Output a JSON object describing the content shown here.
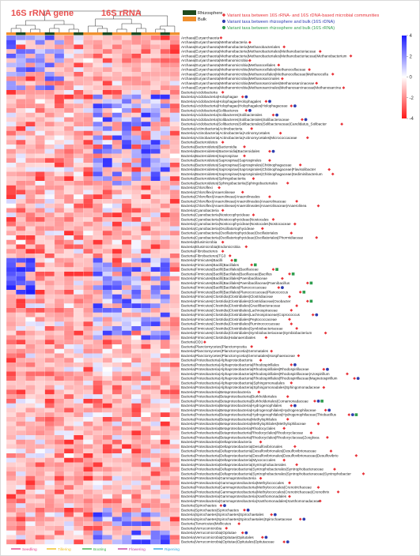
{
  "header": {
    "gene_title": "16S rRNA gene",
    "rrna_title": "16S rRNA"
  },
  "legend": {
    "groups": [
      {
        "name": "Rhizosphere",
        "color": "#1f4a1f"
      },
      {
        "name": "Bulk",
        "color": "#f0902f"
      }
    ],
    "markers": [
      {
        "symbol": "diamond",
        "color": "#e8343a",
        "text": "Variant taxa between 16S rRNA- and 16S rDNA-based microbial communities"
      },
      {
        "symbol": "circle",
        "color": "#2f3fb0",
        "text": "Variant taxa between rhizosphere and bulk (16S rDNA)"
      },
      {
        "symbol": "circle",
        "color": "#2e9d4e",
        "text": "Variant taxa between rhizosphere and bulk (16S rRNA)"
      }
    ]
  },
  "colorbar": {
    "ticks": [
      "4",
      "2",
      "0",
      "-2",
      "-4"
    ],
    "max": 4,
    "min": -4,
    "high_color": "#1a1aff",
    "mid_color": "#ffffff",
    "low_color": "#ff1a1a"
  },
  "stages": [
    {
      "name": "Seedling",
      "color": "#e83e8c"
    },
    {
      "name": "Tillering",
      "color": "#f0c020"
    },
    {
      "name": "Booting",
      "color": "#3db54a"
    },
    {
      "name": "Flowering",
      "color": "#c83fa0"
    },
    {
      "name": "Ripening",
      "color": "#29a8e0"
    }
  ],
  "rows": [
    {
      "label": "Archaea|Euryarchaeota",
      "marks": "d"
    },
    {
      "label": "Archaea|Euryarchaeota|Methanobacteria",
      "marks": "d"
    },
    {
      "label": "Archaea|Euryarchaeota|Methanobacteria|Methanobacteriales",
      "marks": "d"
    },
    {
      "label": "Archaea|Euryarchaeota|Methanobacteria|Methanobacteriales|Methanobacteriaceae",
      "marks": "d"
    },
    {
      "label": "Archaea|Euryarchaeota|Methanobacteria|Methanobacteriales|Methanobacteriaceae|Methanobacterium",
      "marks": "d"
    },
    {
      "label": "Archaea|Euryarchaeota|Methanomicrobia",
      "marks": "d"
    },
    {
      "label": "Archaea|Euryarchaeota|Methanomicrobia|Methanocellales",
      "marks": "d"
    },
    {
      "label": "Archaea|Euryarchaeota|Methanomicrobia|Methanocellales|Methanocellaceae",
      "marks": "d"
    },
    {
      "label": "Archaea|Euryarchaeota|Methanomicrobia|Methanocellales|Methanocellaceae|Methanocella",
      "marks": "d"
    },
    {
      "label": "Archaea|Euryarchaeota|Methanomicrobia|Methanosarcinales",
      "marks": "d"
    },
    {
      "label": "Archaea|Euryarchaeota|Methanomicrobia|Methanosarcinales|Methanosarcinaceae",
      "marks": "d"
    },
    {
      "label": "Archaea|Euryarchaeota|Methanomicrobia|Methanosarcinales|Methanosarcinaceae|Methanosarcina",
      "marks": "d"
    },
    {
      "label": "Bacteria|Acidobacteria",
      "marks": "d"
    },
    {
      "label": "Bacteria|Acidobacteria|Holophagae",
      "marks": "db"
    },
    {
      "label": "Bacteria|Acidobacteria|Holophagae|Holophagales",
      "marks": "db"
    },
    {
      "label": "Bacteria|Acidobacteria|Holophagae|Holophagales|Holophagaceae",
      "marks": "db"
    },
    {
      "label": "Bacteria|Acidobacteria|Solibacteres",
      "marks": "db"
    },
    {
      "label": "Bacteria|Acidobacteria|Solibacteres|Solibacterales",
      "marks": "db"
    },
    {
      "label": "Bacteria|Acidobacteria|Solibacteres|Solibacterales|Solibacteraceae",
      "marks": "db"
    },
    {
      "label": "Bacteria|Acidobacteria|Solibacteres|Solibacterales|Solibacteraceae|Candidatus_Solibacter",
      "marks": "d"
    },
    {
      "label": "Bacteria|Actinobacteria|Actinobacteria",
      "marks": "d"
    },
    {
      "label": "Bacteria|Actinobacteria|Actinobacteria|Actinomycetales",
      "marks": "d"
    },
    {
      "label": "Bacteria|Actinobacteria|Actinobacteria|Actinomycetales|Micrococcaceae",
      "marks": "d"
    },
    {
      "label": "Bacteria|Bacteroidetes",
      "marks": "d"
    },
    {
      "label": "Bacteria|Bacteroidetes|Bacteroidia",
      "marks": "d"
    },
    {
      "label": "Bacteria|Bacteroidetes|Bacteroidia|Bacteroidales",
      "marks": "db"
    },
    {
      "label": "Bacteria|Bacteroidetes|Saprospirae",
      "marks": "d"
    },
    {
      "label": "Bacteria|Bacteroidetes|Saprospirae|Saprospirales",
      "marks": "d"
    },
    {
      "label": "Bacteria|Bacteroidetes|Saprospirae|Saprospirales|Chitinophagaceae",
      "marks": "d"
    },
    {
      "label": "Bacteria|Bacteroidetes|Saprospirae|Saprospirales|Chitinophagaceae|Flavisolibacter",
      "marks": "d"
    },
    {
      "label": "Bacteria|Bacteroidetes|Saprospirae|Saprospirales|Chitinophagaceae|Sediminibacterium",
      "marks": "d"
    },
    {
      "label": "Bacteria|Bacteroidetes|Sphingobacteriia",
      "marks": "d"
    },
    {
      "label": "Bacteria|Bacteroidetes|Sphingobacteriia|Sphingobacteriales",
      "marks": "d"
    },
    {
      "label": "Bacteria|Chloroflexi",
      "marks": "d"
    },
    {
      "label": "Bacteria|Chloroflexi|Anaerolineae",
      "marks": "d"
    },
    {
      "label": "Bacteria|Chloroflexi|Anaerolineae|Anaerolineales",
      "marks": "d"
    },
    {
      "label": "Bacteria|Chloroflexi|Anaerolineae|Anaerolineales|Anaerolinaceae",
      "marks": "d"
    },
    {
      "label": "Bacteria|Chloroflexi|Anaerolineae|Anaerolineales|Anaerolinaceae|Anaerolinea",
      "marks": "d"
    },
    {
      "label": "Bacteria|Cyanobacteria",
      "marks": "d"
    },
    {
      "label": "Bacteria|Cyanobacteria|Nostocophycideae",
      "marks": "d"
    },
    {
      "label": "Bacteria|Cyanobacteria|Nostocophycideae|Nostocales",
      "marks": "d"
    },
    {
      "label": "Bacteria|Cyanobacteria|Nostocophycideae|Nostocales|Nostocaceae",
      "marks": "d"
    },
    {
      "label": "Bacteria|Cyanobacteria|Oscillatoriophycideae",
      "marks": "d"
    },
    {
      "label": "Bacteria|Cyanobacteria|Oscillatoriophycideae|Oscillatoriales",
      "marks": "d"
    },
    {
      "label": "Bacteria|Cyanobacteria|Oscillatoriophycideae|Oscillatoriales|Phormidiaceae",
      "marks": "d"
    },
    {
      "label": "Bacteria|Elusimicrobia",
      "marks": "d"
    },
    {
      "label": "Bacteria|Elusimicrobia|Endomicrobia",
      "marks": "d"
    },
    {
      "label": "Bacteria|Fibrobacteres",
      "marks": "d"
    },
    {
      "label": "Bacteria|Fibrobacteres|TG3",
      "marks": "d"
    },
    {
      "label": "Bacteria|Firmicutes|Bacilli",
      "marks": "dg"
    },
    {
      "label": "Bacteria|Firmicutes|Bacilli|Bacillales",
      "marks": "dg"
    },
    {
      "label": "Bacteria|Firmicutes|Bacilli|Bacillales|Bacillaceae",
      "marks": "dg"
    },
    {
      "label": "Bacteria|Firmicutes|Bacilli|Bacillales|Bacillaceae|Bacillus",
      "marks": "dg"
    },
    {
      "label": "Bacteria|Firmicutes|Bacilli|Bacillales|Paenibacillaceae",
      "marks": "d"
    },
    {
      "label": "Bacteria|Firmicutes|Bacilli|Bacillales|Paenibacillaceae|Paenibacillus",
      "marks": "dg"
    },
    {
      "label": "Bacteria|Firmicutes|Bacilli|Bacillales|Planococcaceae",
      "marks": "db"
    },
    {
      "label": "Bacteria|Firmicutes|Bacilli|Bacillales|Planococcaceae|Planococcus",
      "marks": "dg"
    },
    {
      "label": "Bacteria|Firmicutes|Clostridia|Clostridiales|Clostridiaceae",
      "marks": "d"
    },
    {
      "label": "Bacteria|Firmicutes|Clostridia|Clostridiales|Clostridiaceae|Oxobacter",
      "marks": "dg"
    },
    {
      "label": "Bacteria|Firmicutes|Clostridia|Clostridiales|Gracilibacteraceae",
      "marks": "d"
    },
    {
      "label": "Bacteria|Firmicutes|Clostridia|Clostridiales|Lachnospiraceae",
      "marks": "d"
    },
    {
      "label": "Bacteria|Firmicutes|Clostridia|Clostridiales|Lachnospiraceae|Coprococcus",
      "marks": "db"
    },
    {
      "label": "Bacteria|Firmicutes|Clostridia|Clostridiales|Peptococcaceae",
      "marks": "d"
    },
    {
      "label": "Bacteria|Firmicutes|Clostridia|Clostridiales|Ruminococcaceae",
      "marks": "d"
    },
    {
      "label": "Bacteria|Firmicutes|Clostridia|Clostridiales|Symbiobacteriaceae",
      "marks": "d"
    },
    {
      "label": "Bacteria|Firmicutes|Clostridia|Clostridiales|Symbiobacteriaceae|Symbiobacterium",
      "marks": "d"
    },
    {
      "label": "Bacteria|Firmicutes|Clostridia|Halanaerobiales",
      "marks": "d"
    },
    {
      "label": "Bacteria|OD1",
      "marks": "d"
    },
    {
      "label": "Bacteria|Planctomycetes|Planctomycetia",
      "marks": "d"
    },
    {
      "label": "Bacteria|Planctomycetes|Planctomycetia|Gemmatales",
      "marks": "d"
    },
    {
      "label": "Bacteria|Planctomycetes|Planctomycetia|Gemmatales|Isosphaeraceae",
      "marks": "d"
    },
    {
      "label": "Bacteria|Proteobacteria|Alphaproteobacteria",
      "marks": "d"
    },
    {
      "label": "Bacteria|Proteobacteria|Alphaproteobacteria|Rhodospirillales",
      "marks": "db"
    },
    {
      "label": "Bacteria|Proteobacteria|Alphaproteobacteria|Rhodospirillales|Rhodospirillaceae",
      "marks": "db"
    },
    {
      "label": "Bacteria|Proteobacteria|Alphaproteobacteria|Rhodospirillales|Rhodospirillaceae|Azospirillum",
      "marks": "d"
    },
    {
      "label": "Bacteria|Proteobacteria|Alphaproteobacteria|Rhodospirillales|Rhodospirillaceae|Magnetospirillum",
      "marks": "db"
    },
    {
      "label": "Bacteria|Proteobacteria|Alphaproteobacteria|Sphingomonadales",
      "marks": "d"
    },
    {
      "label": "Bacteria|Proteobacteria|Alphaproteobacteria|Sphingomonadales|Sphingomonadaceae",
      "marks": "d"
    },
    {
      "label": "Bacteria|Proteobacteria|Betaproteobacteria",
      "marks": "d"
    },
    {
      "label": "Bacteria|Proteobacteria|Betaproteobacteria|Burkholderiales",
      "marks": "d"
    },
    {
      "label": "Bacteria|Proteobacteria|Betaproteobacteria|Burkholderiales|Comamonadaceae",
      "marks": "dbg"
    },
    {
      "label": "Bacteria|Proteobacteria|Betaproteobacteria|Hydrogenophilales",
      "marks": "db"
    },
    {
      "label": "Bacteria|Proteobacteria|Betaproteobacteria|Hydrogenophilales|Hydrogenophilaceae",
      "marks": "db"
    },
    {
      "label": "Bacteria|Proteobacteria|Betaproteobacteria|Hydrogenophilales|Hydrogenophilaceae|Thiobacillus",
      "marks": "dbg"
    },
    {
      "label": "Bacteria|Proteobacteria|Betaproteobacteria|Methylophilales",
      "marks": "d"
    },
    {
      "label": "Bacteria|Proteobacteria|Betaproteobacteria|Methylophilales|Methylophilaceae",
      "marks": "d"
    },
    {
      "label": "Bacteria|Proteobacteria|Betaproteobacteria|Rhodocyclales",
      "marks": "d"
    },
    {
      "label": "Bacteria|Proteobacteria|Betaproteobacteria|Rhodocyclales|Rhodocyclaceae",
      "marks": "d"
    },
    {
      "label": "Bacteria|Proteobacteria|Betaproteobacteria|Rhodocyclales|Rhodocyclaceae|Zoogloea",
      "marks": "d"
    },
    {
      "label": "Bacteria|Proteobacteria|Deltaproteobacteria",
      "marks": "d"
    },
    {
      "label": "Bacteria|Proteobacteria|Deltaproteobacteria|Desulfovibrionales",
      "marks": "d"
    },
    {
      "label": "Bacteria|Proteobacteria|Deltaproteobacteria|Desulfovibrionales|Desulfovibrionaceae",
      "marks": "d"
    },
    {
      "label": "Bacteria|Proteobacteria|Deltaproteobacteria|Desulfovibrionales|Desulfovibrionaceae|Desulfovibrio",
      "marks": "d"
    },
    {
      "label": "Bacteria|Proteobacteria|Deltaproteobacteria|Myxococcales",
      "marks": "d"
    },
    {
      "label": "Bacteria|Proteobacteria|Deltaproteobacteria|Syntrophobacterales",
      "marks": "d"
    },
    {
      "label": "Bacteria|Proteobacteria|Deltaproteobacteria|Syntrophobacterales|Syntrophobacteraceae",
      "marks": "d"
    },
    {
      "label": "Bacteria|Proteobacteria|Deltaproteobacteria|Syntrophobacterales|Syntrophobacteraceae|Syntrophobacter",
      "marks": "d"
    },
    {
      "label": "Bacteria|Proteobacteria|Gammaproteobacteria",
      "marks": "d"
    },
    {
      "label": "Bacteria|Proteobacteria|Gammaproteobacteria|Methylococcales",
      "marks": "d"
    },
    {
      "label": "Bacteria|Proteobacteria|Gammaproteobacteria|Methylococcales|Crenotrichaceae",
      "marks": "d"
    },
    {
      "label": "Bacteria|Proteobacteria|Gammaproteobacteria|Methylococcales|Crenotrichaceae|Crenothrix",
      "marks": "d"
    },
    {
      "label": "Bacteria|Proteobacteria|Gammaproteobacteria|Xanthomonadales",
      "marks": "d"
    },
    {
      "label": "Bacteria|Proteobacteria|Gammaproteobacteria|Xanthomonadales|Xanthomonadaceae",
      "marks": "d"
    },
    {
      "label": "Bacteria|Spirochaetes",
      "marks": "db"
    },
    {
      "label": "Bacteria|Spirochaetes|Spirochaetes",
      "marks": "db"
    },
    {
      "label": "Bacteria|Spirochaetes|Spirochaetes|Spirochaetales",
      "marks": "db"
    },
    {
      "label": "Bacteria|Spirochaetes|Spirochaetes|Spirochaetales|Spirochaetaceae",
      "marks": "db"
    },
    {
      "label": "Bacteria|Tenericutes|Mollicutes",
      "marks": "d"
    },
    {
      "label": "Bacteria|Verrucomicrobia",
      "marks": "d"
    },
    {
      "label": "Bacteria|Verrucomicrobia|Opitutae",
      "marks": "db"
    },
    {
      "label": "Bacteria|Verrucomicrobia|Opitutae|Opitutales",
      "marks": "db"
    },
    {
      "label": "Bacteria|Verrucomicrobia|Opitutae|Opitutales|Opitutaceae",
      "marks": "db"
    }
  ]
}
